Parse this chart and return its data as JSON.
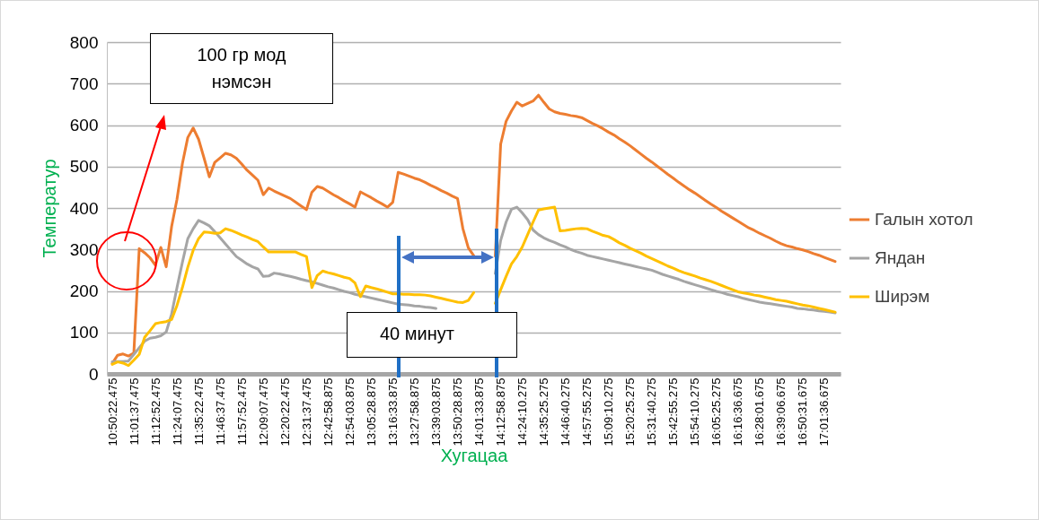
{
  "chart_data": {
    "type": "line",
    "xlabel": "Хугацаа",
    "ylabel": "Температур",
    "ylim": [
      0,
      800
    ],
    "yticks": [
      0,
      100,
      200,
      300,
      400,
      500,
      600,
      700,
      800
    ],
    "categories": [
      "10:50:22.475",
      null,
      null,
      null,
      "11:01:37.475",
      null,
      null,
      null,
      "11:12:52.475",
      null,
      null,
      null,
      "11:24:07.475",
      null,
      null,
      null,
      "11:35:22.475",
      null,
      null,
      null,
      "11:46:37.475",
      null,
      null,
      null,
      "11:57:52.475",
      null,
      null,
      null,
      "12:09:07.475",
      null,
      null,
      null,
      "12:20:22.475",
      null,
      null,
      null,
      "12:31:37.475",
      null,
      null,
      null,
      "12:42:58.875",
      null,
      null,
      null,
      "12:54:03.875",
      null,
      null,
      null,
      "13:05:28.875",
      null,
      null,
      null,
      "13:16:33.875",
      null,
      null,
      null,
      "13:27:58.875",
      null,
      null,
      null,
      "13:39:03.875",
      null,
      null,
      null,
      "13:50:28.875",
      null,
      null,
      null,
      "14:01:33.875",
      null,
      null,
      null,
      "14:12:58.875",
      null,
      null,
      null,
      "14:24:10.275",
      null,
      null,
      null,
      "14:35:25.275",
      null,
      null,
      null,
      "14:46:40.275",
      null,
      null,
      null,
      "14:57:55.275",
      null,
      null,
      null,
      "15:09:10.275",
      null,
      null,
      null,
      "15:20:25.275",
      null,
      null,
      null,
      "15:31:40.275",
      null,
      null,
      null,
      "15:42:55.275",
      null,
      null,
      null,
      "15:54:10.275",
      null,
      null,
      null,
      "16:05:25.275",
      null,
      null,
      null,
      "16:16:36.675",
      null,
      null,
      null,
      "16:28:01.675",
      null,
      null,
      null,
      "16:39:06.675",
      null,
      null,
      null,
      "16:50:31.675",
      null,
      null,
      null,
      "17:01:36.675",
      null,
      null
    ],
    "grid": "y",
    "legend": "right",
    "annotations": [
      "100 гр мод нэмсэн",
      "40 минут"
    ],
    "series": [
      {
        "name": "Галын хотол",
        "color": "#ed7d31",
        "values": [
          25,
          45,
          48,
          43,
          50,
          302,
          292,
          280,
          262,
          305,
          258,
          355,
          421,
          507,
          570,
          593,
          566,
          521,
          475,
          510,
          521,
          532,
          528,
          520,
          506,
          491,
          479,
          467,
          432,
          448,
          441,
          435,
          429,
          423,
          414,
          405,
          396,
          438,
          452,
          448,
          440,
          432,
          425,
          417,
          410,
          402,
          439,
          432,
          425,
          417,
          410,
          402,
          414,
          486,
          482,
          477,
          472,
          468,
          462,
          455,
          449,
          442,
          436,
          429,
          423,
          350,
          304,
          285,
          null,
          null,
          null,
          284,
          554,
          609,
          634,
          655,
          646,
          652,
          658,
          672,
          655,
          639,
          632,
          628,
          626,
          623,
          621,
          618,
          611,
          604,
          598,
          591,
          583,
          576,
          567,
          559,
          550,
          540,
          530,
          520,
          511,
          501,
          491,
          481,
          472,
          462,
          453,
          444,
          436,
          427,
          418,
          409,
          401,
          392,
          384,
          376,
          368,
          360,
          352,
          346,
          339,
          333,
          327,
          320,
          314,
          309,
          306,
          302,
          299,
          295,
          290,
          286,
          281,
          276,
          271
        ]
      },
      {
        "name": "Яндан",
        "color": "#a5a5a5",
        "values": [
          29,
          30,
          30,
          31,
          47,
          63,
          79,
          86,
          88,
          92,
          101,
          144,
          208,
          269,
          326,
          350,
          370,
          364,
          357,
          343,
          328,
          313,
          298,
          283,
          274,
          265,
          258,
          253,
          235,
          236,
          243,
          241,
          238,
          235,
          232,
          228,
          225,
          222,
          218,
          214,
          210,
          207,
          203,
          199,
          196,
          192,
          189,
          186,
          183,
          180,
          177,
          174,
          171,
          168,
          167,
          166,
          164,
          163,
          161,
          160,
          158,
          null,
          null,
          null,
          null,
          null,
          null,
          null,
          null,
          null,
          null,
          242,
          322,
          366,
          397,
          402,
          388,
          372,
          347,
          336,
          328,
          322,
          317,
          311,
          306,
          300,
          295,
          291,
          286,
          283,
          280,
          277,
          274,
          271,
          268,
          265,
          262,
          259,
          256,
          253,
          250,
          245,
          240,
          236,
          232,
          228,
          223,
          219,
          215,
          211,
          207,
          203,
          199,
          196,
          192,
          189,
          186,
          182,
          179,
          176,
          173,
          171,
          169,
          167,
          165,
          163,
          161,
          158,
          157,
          155,
          154,
          152,
          151,
          149,
          147
        ]
      },
      {
        "name": "Ширэм",
        "color": "#ffc000",
        "values": [
          23,
          29,
          26,
          20,
          33,
          47,
          88,
          104,
          121,
          124,
          126,
          131,
          165,
          208,
          257,
          298,
          326,
          342,
          341,
          339,
          340,
          350,
          346,
          341,
          335,
          330,
          324,
          319,
          306,
          294,
          294,
          294,
          294,
          294,
          294,
          288,
          283,
          208,
          237,
          248,
          244,
          241,
          237,
          233,
          230,
          219,
          186,
          212,
          208,
          205,
          201,
          197,
          193,
          193,
          192,
          192,
          191,
          191,
          190,
          188,
          185,
          182,
          179,
          176,
          173,
          172,
          177,
          196,
          null,
          null,
          null,
          170,
          203,
          235,
          265,
          283,
          306,
          336,
          366,
          395,
          398,
          400,
          402,
          345,
          346,
          348,
          350,
          351,
          350,
          344,
          339,
          334,
          331,
          324,
          316,
          310,
          303,
          297,
          291,
          284,
          278,
          272,
          266,
          260,
          255,
          249,
          244,
          240,
          236,
          231,
          227,
          223,
          218,
          213,
          208,
          203,
          198,
          195,
          193,
          190,
          188,
          185,
          182,
          179,
          177,
          175,
          172,
          169,
          166,
          164,
          161,
          158,
          155,
          152,
          149
        ]
      }
    ]
  }
}
